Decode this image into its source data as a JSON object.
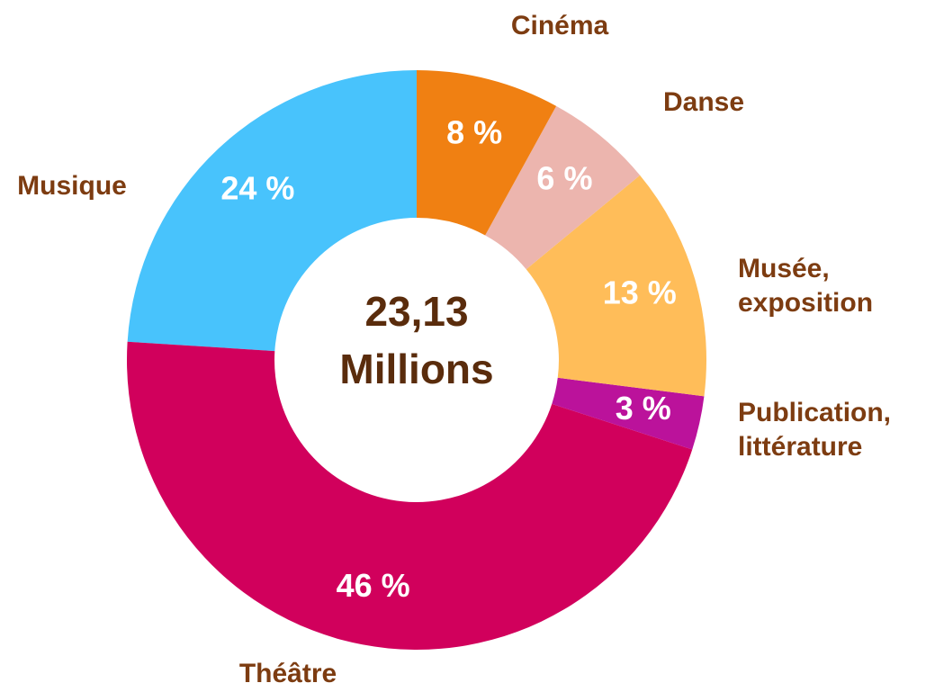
{
  "chart_data": {
    "type": "donut",
    "categories": [
      "Cinéma",
      "Danse",
      "Musée, exposition",
      "Publication, littérature",
      "Théâtre",
      "Musique"
    ],
    "values": [
      8,
      6,
      13,
      3,
      46,
      24
    ],
    "value_labels": [
      "8 %",
      "6 %",
      "13 %",
      "3 %",
      "46 %",
      "24 %"
    ],
    "colors": [
      "#f08012",
      "#ecb5ae",
      "#ffbd59",
      "#bb129b",
      "#d1005c",
      "#48c3fc"
    ],
    "center_label": [
      "23,13",
      "Millions"
    ]
  }
}
